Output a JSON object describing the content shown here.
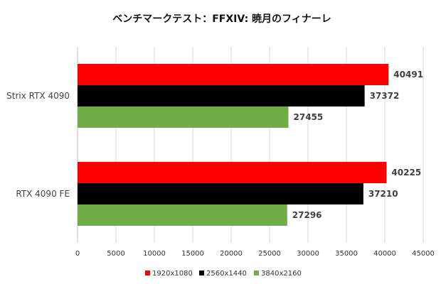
{
  "chart_data": {
    "type": "bar",
    "orientation": "horizontal",
    "title": "ベンチマークテスト：FFXIV: 暁月のフィナーレ",
    "categories": [
      "Strix RTX 4090",
      "RTX 4090 FE"
    ],
    "series": [
      {
        "name": "1920x1080",
        "color": "#ff0000",
        "values": [
          40491,
          40225
        ]
      },
      {
        "name": "2560x1440",
        "color": "#000000",
        "values": [
          37372,
          37210
        ]
      },
      {
        "name": "3840x2160",
        "color": "#70ad47",
        "values": [
          27455,
          27296
        ]
      }
    ],
    "xlim": [
      0,
      45000
    ],
    "xticks": [
      0,
      5000,
      10000,
      15000,
      20000,
      25000,
      30000,
      35000,
      40000,
      45000
    ],
    "xlabel": "",
    "ylabel": "",
    "grid": "vertical",
    "legend": "bottom"
  }
}
